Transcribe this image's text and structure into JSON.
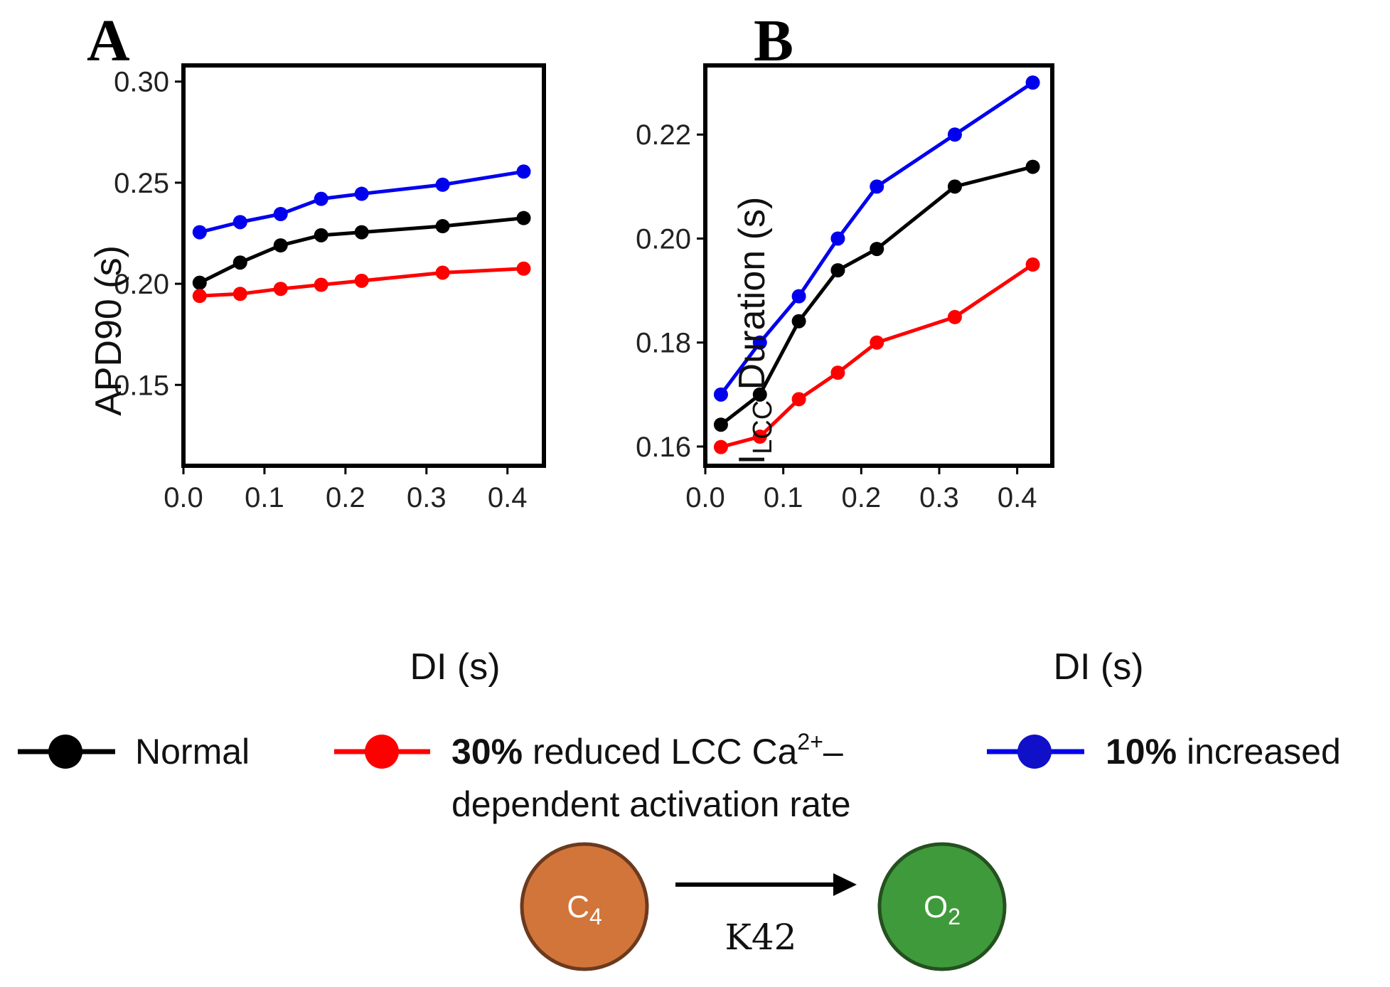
{
  "panels": [
    {
      "letter": "A",
      "xlabel": "DI (s)",
      "ylabel": "APD90 (s)",
      "ylabel_sub": "",
      "ylabel_rest": "",
      "xlim": [
        0.0,
        0.445
      ],
      "ylim": [
        0.11,
        0.308
      ],
      "xticks": [
        "0.0",
        "0.1",
        "0.2",
        "0.3",
        "0.4"
      ],
      "yticks": [
        "0.15",
        "0.20",
        "0.25",
        "0.30"
      ]
    },
    {
      "letter": "B",
      "xlabel": "DI (s)",
      "ylabel": "I",
      "ylabel_sub": "LCC",
      "ylabel_rest": " Duration (s)",
      "xlim": [
        0.0,
        0.445
      ],
      "ylim": [
        0.1563,
        0.2333
      ],
      "xticks": [
        "0.0",
        "0.1",
        "0.2",
        "0.3",
        "0.4"
      ],
      "yticks": [
        "0.16",
        "0.18",
        "0.20",
        "0.22"
      ]
    }
  ],
  "chart_data": [
    {
      "type": "line",
      "title": "A",
      "xlabel": "DI (s)",
      "ylabel": "APD90 (s)",
      "xlim": [
        0.0,
        0.445
      ],
      "ylim": [
        0.11,
        0.308
      ],
      "x": [
        0.02,
        0.07,
        0.12,
        0.17,
        0.22,
        0.32,
        0.42
      ],
      "series": [
        {
          "name": "Normal",
          "color": "#000000",
          "values": [
            0.2005,
            0.2105,
            0.219,
            0.224,
            0.2255,
            0.2285,
            0.2325
          ]
        },
        {
          "name": "30% reduced LCC Ca2+-dependent activation rate",
          "color": "#ff0000",
          "values": [
            0.194,
            0.195,
            0.1975,
            0.1995,
            0.2015,
            0.2055,
            0.2075
          ]
        },
        {
          "name": "10% increased",
          "color": "#0000ee",
          "values": [
            0.2255,
            0.2305,
            0.2345,
            0.242,
            0.2445,
            0.249,
            0.2555
          ]
        }
      ]
    },
    {
      "type": "line",
      "title": "B",
      "xlabel": "DI (s)",
      "ylabel": "ILCC Duration (s)",
      "xlim": [
        0.0,
        0.445
      ],
      "ylim": [
        0.1563,
        0.2333
      ],
      "x": [
        0.02,
        0.07,
        0.12,
        0.17,
        0.22,
        0.32,
        0.42
      ],
      "series": [
        {
          "name": "Normal",
          "color": "#000000",
          "values": [
            0.1642,
            0.17,
            0.1841,
            0.1939,
            0.198,
            0.21,
            0.2138
          ]
        },
        {
          "name": "30% reduced LCC Ca2+-dependent activation rate",
          "color": "#ff0000",
          "values": [
            0.1599,
            0.1619,
            0.1691,
            0.1742,
            0.18,
            0.1849,
            0.195
          ]
        },
        {
          "name": "10% increased",
          "color": "#0000ee",
          "values": [
            0.17,
            0.18,
            0.1889,
            0.2,
            0.21,
            0.22,
            0.23
          ]
        }
      ]
    }
  ],
  "legend": {
    "normal": "Normal",
    "reduced_bold": "30%",
    "reduced_text": " reduced LCC Ca",
    "reduced_sup": "2+",
    "reduced_dash": "–",
    "reduced_line2": "dependent activation rate",
    "increased_bold": "10%",
    "increased_text": " increased"
  },
  "diagram": {
    "state1": "C",
    "state1_sub": "4",
    "state2": "O",
    "state2_sub": "2",
    "rate": "K42",
    "state1_color": "#d2753a",
    "state2_color": "#3f9a3c"
  }
}
